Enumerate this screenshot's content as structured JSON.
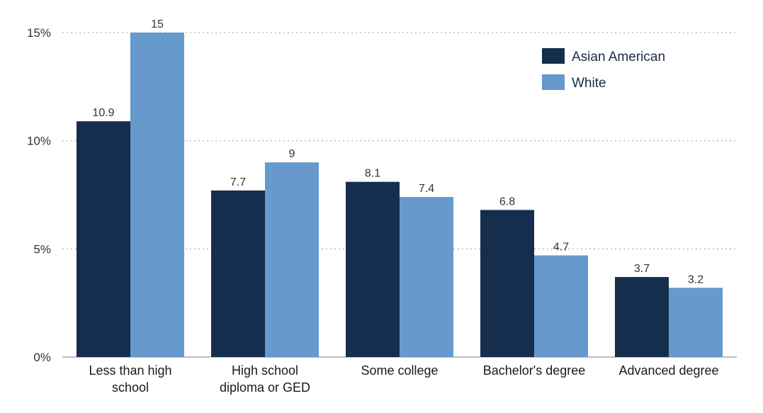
{
  "chart_data": {
    "type": "bar",
    "title": "",
    "xlabel": "",
    "ylabel": "",
    "ylim": [
      0,
      15
    ],
    "ytick_values": [
      0,
      5,
      10,
      15
    ],
    "ytick_labels": [
      "0%",
      "5%",
      "10%",
      "15%"
    ],
    "grid": "horizontal dotted",
    "legend_position": "top-right",
    "categories": [
      [
        "Less than high",
        "school"
      ],
      [
        "High school",
        "diploma or GED"
      ],
      [
        "Some college"
      ],
      [
        "Bachelor's degree"
      ],
      [
        "Advanced degree"
      ]
    ],
    "series": [
      {
        "name": "Asian American",
        "color": "#152e4d",
        "values": [
          10.9,
          7.7,
          8.1,
          6.8,
          3.7
        ],
        "labels": [
          "10.9",
          "7.7",
          "8.1",
          "6.8",
          "3.7"
        ]
      },
      {
        "name": "White",
        "color": "#6699cc",
        "values": [
          15,
          9,
          7.4,
          4.7,
          3.2
        ],
        "labels": [
          "15",
          "9",
          "7.4",
          "4.7",
          "3.2"
        ]
      }
    ],
    "colors": {
      "grid": "#bfbfbf",
      "axis": "#999999"
    }
  }
}
